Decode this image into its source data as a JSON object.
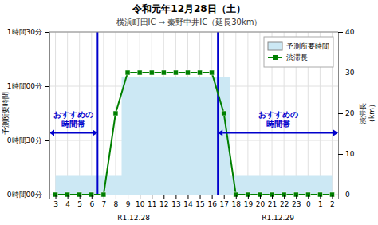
{
  "chart_data": {
    "type": "line",
    "title": "令和元年12月28日（土）",
    "subtitle": "横浜町田IC ⇒ 秦野中井IC（延長30km）",
    "y_label": "予測所要時間",
    "y2_label": "渋滞長\n（km）",
    "categories": [
      "3",
      "4",
      "5",
      "6",
      "7",
      "8",
      "9",
      "10",
      "11",
      "12",
      "13",
      "14",
      "15",
      "16",
      "17",
      "18",
      "19",
      "20",
      "21",
      "22",
      "23",
      "0",
      "1",
      "2"
    ],
    "x_group_labels": [
      {
        "label": "R1.12.28",
        "from": "3",
        "to": "16"
      },
      {
        "label": "R1.12.29",
        "from": "17",
        "to": "2"
      }
    ],
    "series": [
      {
        "name": "予測所要時間",
        "type": "area",
        "line_style": "step",
        "color": "#cce8f4",
        "values": [
          0.18,
          0.18,
          0.18,
          0.18,
          0.18,
          0.18,
          1.08,
          1.08,
          1.08,
          1.08,
          1.08,
          1.08,
          1.08,
          1.08,
          1.08,
          0.18,
          0.18,
          0.18,
          0.18,
          0.18,
          0.18,
          0.18,
          0.18,
          0.18
        ]
      },
      {
        "name": "渋滞長",
        "type": "line",
        "axis": "y2",
        "color": "#008000",
        "marker": "square",
        "values": [
          0,
          0,
          0,
          0,
          0,
          20,
          30,
          30,
          30,
          30,
          30,
          30,
          30,
          30,
          20,
          0,
          0,
          0,
          0,
          0,
          0,
          0,
          0,
          0
        ]
      }
    ],
    "ylim": [
      0,
      1.5
    ],
    "yticks": [
      {
        "value": 0,
        "label": "0時間00分"
      },
      {
        "value": 0.5,
        "label": "0時間30分"
      },
      {
        "value": 1.0,
        "label": "1時間00分"
      },
      {
        "value": 1.5,
        "label": "1時間30分"
      }
    ],
    "y2lim": [
      0,
      40
    ],
    "y2ticks": [
      0,
      10,
      20,
      30,
      40
    ],
    "annotations": [
      {
        "lines": [
          "おすすめの",
          "時間帯"
        ],
        "from": "3",
        "to": "6",
        "color": "#0000cc"
      },
      {
        "lines": [
          "おすすめの",
          "時間帯"
        ],
        "from": "17",
        "to": "2",
        "color": "#0000cc"
      }
    ],
    "grid": true,
    "legend": "upper right"
  }
}
